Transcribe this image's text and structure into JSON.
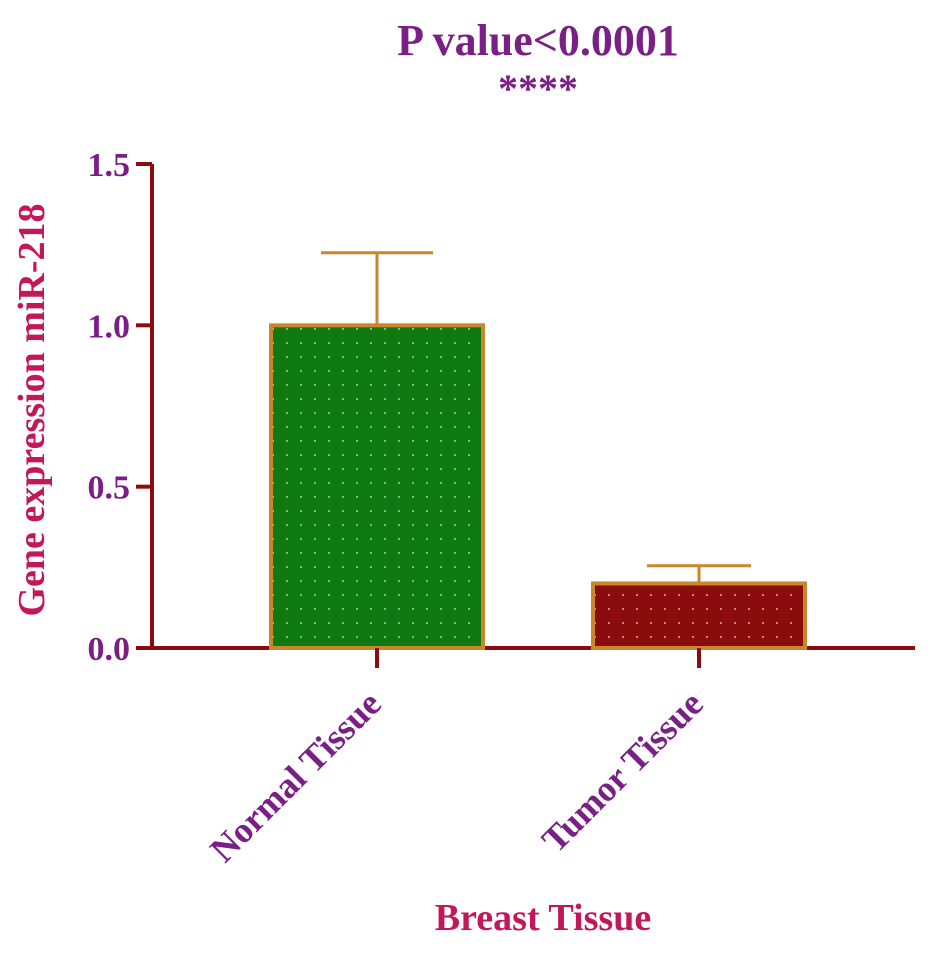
{
  "chart_data": {
    "type": "bar",
    "title": "P value<0.0001",
    "significance": "****",
    "xlabel": "Breast Tissue",
    "ylabel": "Gene expression miR-218",
    "categories": [
      "Normal Tissue",
      "Tumor Tissue"
    ],
    "values": [
      1.0,
      0.2
    ],
    "error_upper": [
      1.225,
      0.255
    ],
    "ylim": [
      0,
      1.5
    ],
    "yticks": [
      "0.0",
      "0.5",
      "1.0",
      "1.5"
    ],
    "grid": false,
    "legend": "none",
    "bar_fill_patterned": true
  },
  "colors": {
    "bars": [
      "#0f7a12",
      "#8b0c0c"
    ],
    "bar_edge": "#c9862b",
    "error_bar": "#c9862b",
    "axis": "#8b0c0c",
    "title": "#7a1f86",
    "ticks": "#7a1f86",
    "axis_label": "#c2185b"
  }
}
